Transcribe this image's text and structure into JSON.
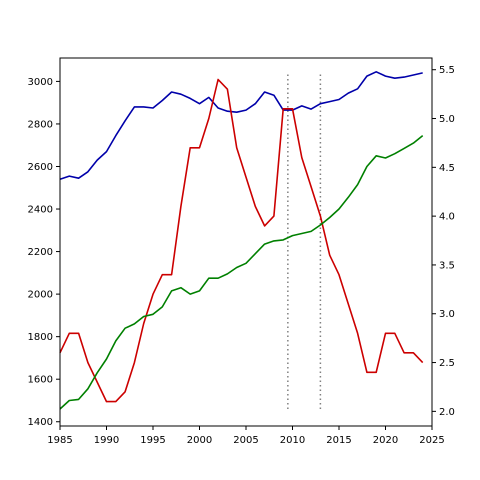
{
  "chart_data": {
    "type": "line",
    "title": "",
    "xlabel": "",
    "ylabel": "",
    "y2label": "",
    "grid": false,
    "legend": "none",
    "xlim": [
      1985,
      2025
    ],
    "ylim": [
      1380,
      3110
    ],
    "y2lim": [
      1.85,
      5.62
    ],
    "x_ticks": [
      1985,
      1990,
      1995,
      2000,
      2005,
      2010,
      2015,
      2020,
      2025
    ],
    "y_ticks": [
      1400,
      1600,
      1800,
      2000,
      2200,
      2400,
      2600,
      2800,
      3000
    ],
    "y2_ticks": [
      "2.0",
      "2.5",
      "3.0",
      "3.5",
      "4.0",
      "4.5",
      "5.0",
      "5.5"
    ],
    "vlines": {
      "x": [
        2009.5,
        2013
      ],
      "y_range": [
        1460,
        3040
      ],
      "style": "dotted",
      "color": "#808080"
    },
    "series": [
      {
        "axis": "left",
        "color": "#0000aa",
        "x": [
          1985,
          1986,
          1987,
          1988,
          1989,
          1990,
          1991,
          1992,
          1993,
          1994,
          1995,
          1996,
          1997,
          1998,
          1999,
          2000,
          2001,
          2002,
          2003,
          2004,
          2005,
          2006,
          2007,
          2008,
          2009,
          2010,
          2011,
          2012,
          2013,
          2014,
          2015,
          2016,
          2017,
          2018,
          2019,
          2020,
          2021,
          2022,
          2023,
          2024
        ],
        "y": [
          2540,
          2555,
          2545,
          2575,
          2630,
          2670,
          2745,
          2815,
          2880,
          2880,
          2875,
          2910,
          2950,
          2940,
          2920,
          2895,
          2925,
          2875,
          2860,
          2855,
          2865,
          2895,
          2950,
          2935,
          2865,
          2865,
          2885,
          2870,
          2895,
          2905,
          2915,
          2945,
          2965,
          3025,
          3045,
          3025,
          3015,
          3020,
          3030,
          3040
        ]
      },
      {
        "axis": "right",
        "color": "#cc0000",
        "x": [
          1985,
          1986,
          1987,
          1988,
          1989,
          1990,
          1991,
          1992,
          1993,
          1994,
          1995,
          1996,
          1997,
          1998,
          1999,
          2000,
          2001,
          2002,
          2003,
          2004,
          2005,
          2006,
          2007,
          2008,
          2009,
          2010,
          2011,
          2012,
          2013,
          2014,
          2015,
          2016,
          2017,
          2018,
          2019,
          2020,
          2021,
          2022,
          2023,
          2024
        ],
        "y": [
          2.6,
          2.8,
          2.8,
          2.5,
          2.3,
          2.1,
          2.1,
          2.2,
          2.5,
          2.9,
          3.2,
          3.4,
          3.4,
          4.1,
          4.7,
          4.7,
          5.0,
          5.4,
          5.3,
          4.7,
          4.4,
          4.1,
          3.9,
          4.0,
          5.1,
          5.1,
          4.6,
          4.3,
          4.0,
          3.6,
          3.4,
          3.1,
          2.8,
          2.4,
          2.4,
          2.8,
          2.8,
          2.6,
          2.6,
          2.5
        ]
      },
      {
        "axis": "left",
        "color": "#008000",
        "x": [
          1985,
          1986,
          1987,
          1988,
          1989,
          1990,
          1991,
          1992,
          1993,
          1994,
          1995,
          1996,
          1997,
          1998,
          1999,
          2000,
          2001,
          2002,
          2003,
          2004,
          2005,
          2006,
          2007,
          2008,
          2009,
          2010,
          2011,
          2012,
          2013,
          2014,
          2015,
          2016,
          2017,
          2018,
          2019,
          2020,
          2021,
          2022,
          2023,
          2024
        ],
        "y": [
          1460,
          1500,
          1505,
          1555,
          1630,
          1695,
          1780,
          1840,
          1860,
          1895,
          1905,
          1940,
          2015,
          2030,
          2000,
          2015,
          2075,
          2075,
          2095,
          2125,
          2145,
          2190,
          2235,
          2250,
          2255,
          2275,
          2285,
          2295,
          2325,
          2360,
          2400,
          2455,
          2515,
          2600,
          2650,
          2640,
          2660,
          2685,
          2710,
          2745
        ]
      }
    ]
  }
}
